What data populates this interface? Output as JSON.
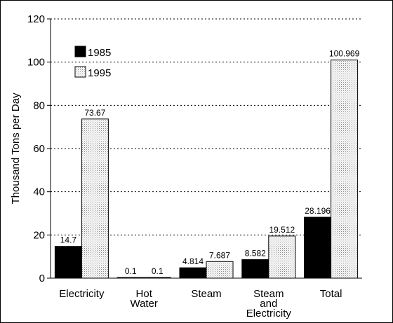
{
  "chart_data": {
    "type": "bar",
    "ylabel": "Thousand Tons per Day",
    "ylim": [
      0,
      120
    ],
    "yticks": [
      0,
      20,
      40,
      60,
      80,
      100,
      120
    ],
    "grid": "horizontal dotted",
    "legend_placement": "top-left",
    "categories": [
      [
        "Electricity"
      ],
      [
        "Hot",
        "Water"
      ],
      [
        "Steam"
      ],
      [
        "Steam",
        "and",
        "Electricity"
      ],
      [
        "Total"
      ]
    ],
    "series": [
      {
        "name": "1985",
        "values": [
          14.7,
          0.1,
          4.814,
          8.582,
          28.196
        ],
        "labels": [
          "14.7",
          "0.1",
          "4.814",
          "8.582",
          "28.196"
        ],
        "color": "#000000"
      },
      {
        "name": "1995",
        "values": [
          73.67,
          0.1,
          7.687,
          19.512,
          100.969
        ],
        "labels": [
          "73.67",
          "0.1",
          "7.687",
          "19.512",
          "100.969"
        ],
        "color": "#dddddd"
      }
    ]
  }
}
